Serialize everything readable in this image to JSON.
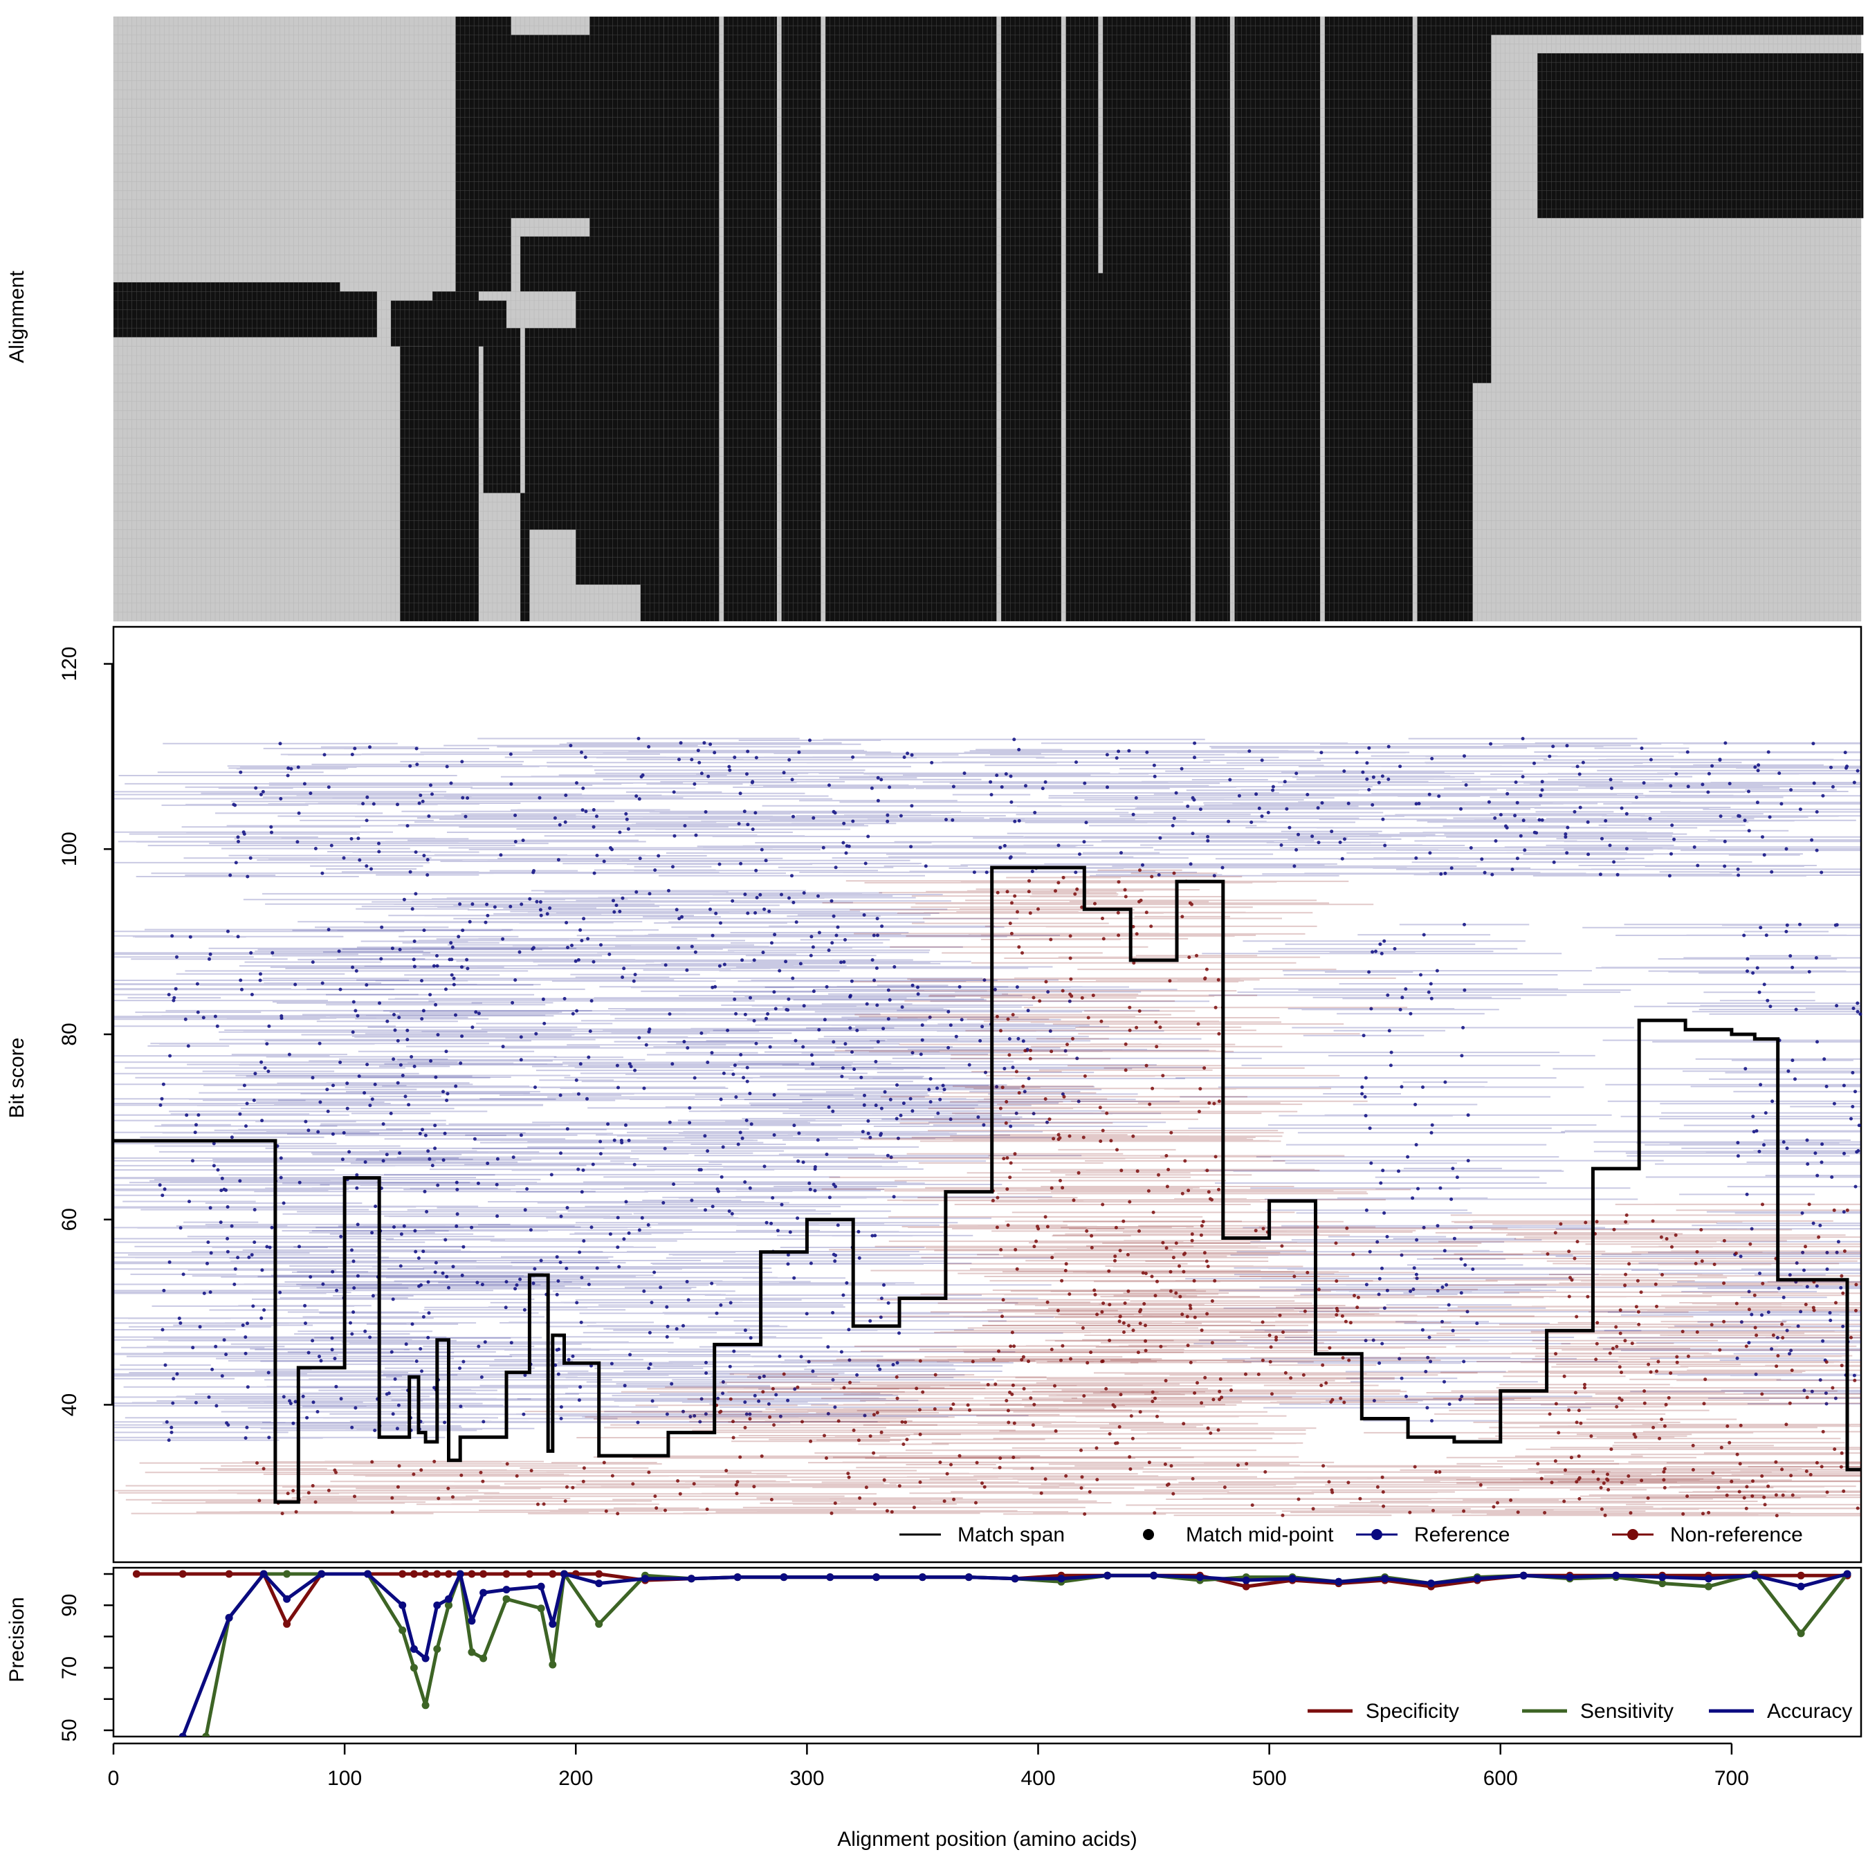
{
  "figure": {
    "shared_xlabel": "Alignment position (amino acids)"
  },
  "chart_data": [
    {
      "type": "heatmap",
      "ylabel": "Alignment",
      "xlim": [
        0,
        756
      ],
      "colors": {
        "filled": "#111111",
        "gap": "#c9c9c9"
      },
      "rows": 66,
      "columns": 378,
      "filled_blocks": [
        {
          "x": [
            228,
            238
          ],
          "rows": [
            0,
            66
          ]
        },
        {
          "x": [
            238,
            588
          ],
          "rows": [
            0,
            66
          ]
        },
        {
          "x": [
            588,
            596
          ],
          "rows": [
            0,
            40
          ]
        },
        {
          "x": [
            595,
            757
          ],
          "rows": [
            0,
            2
          ]
        },
        {
          "x": [
            616,
            757
          ],
          "rows": [
            4,
            22
          ]
        },
        {
          "x": [
            148,
            172
          ],
          "rows": [
            0,
            30
          ]
        },
        {
          "x": [
            170,
            206
          ],
          "rows": [
            2,
            22
          ]
        },
        {
          "x": [
            206,
            228
          ],
          "rows": [
            0,
            62
          ]
        },
        {
          "x": [
            176,
            212
          ],
          "rows": [
            24,
            30
          ]
        },
        {
          "x": [
            0,
            98
          ],
          "rows": [
            29,
            35
          ]
        },
        {
          "x": [
            97,
            114
          ],
          "rows": [
            30,
            35
          ]
        },
        {
          "x": [
            120,
            170
          ],
          "rows": [
            31,
            36
          ]
        },
        {
          "x": [
            124,
            148
          ],
          "rows": [
            36,
            66
          ]
        },
        {
          "x": [
            138,
            158
          ],
          "rows": [
            30,
            66
          ]
        },
        {
          "x": [
            160,
            176
          ],
          "rows": [
            34,
            52
          ]
        },
        {
          "x": [
            178,
            200
          ],
          "rows": [
            34,
            56
          ]
        },
        {
          "x": [
            200,
            226
          ],
          "rows": [
            30,
            62
          ]
        },
        {
          "x": [
            176,
            180
          ],
          "rows": [
            52,
            66
          ]
        }
      ],
      "gap_columns": [
        {
          "x": [
            262,
            264
          ],
          "rows": [
            0,
            66
          ]
        },
        {
          "x": [
            287,
            289
          ],
          "rows": [
            0,
            66
          ]
        },
        {
          "x": [
            306,
            308
          ],
          "rows": [
            0,
            66
          ]
        },
        {
          "x": [
            382,
            384
          ],
          "rows": [
            0,
            66
          ]
        },
        {
          "x": [
            410,
            412
          ],
          "rows": [
            0,
            66
          ]
        },
        {
          "x": [
            466,
            468
          ],
          "rows": [
            0,
            66
          ]
        },
        {
          "x": [
            483,
            485
          ],
          "rows": [
            0,
            66
          ]
        },
        {
          "x": [
            562,
            564
          ],
          "rows": [
            0,
            66
          ]
        },
        {
          "x": [
            426,
            428
          ],
          "rows": [
            0,
            28
          ]
        },
        {
          "x": [
            522,
            524
          ],
          "rows": [
            0,
            66
          ]
        }
      ]
    },
    {
      "type": "line",
      "ylabel": "Bit score",
      "xlim": [
        0,
        756
      ],
      "ylim": [
        23,
        124
      ],
      "yticks": [
        40,
        60,
        80,
        100,
        120
      ],
      "legend_position": "bottom-right",
      "legend": [
        {
          "label": "Match span",
          "marker": "line",
          "color": "#000000"
        },
        {
          "label": "Match mid-point",
          "marker": "dot",
          "color": "#000000"
        },
        {
          "label": "Reference",
          "marker": "line-dot",
          "color": "#0a0a80"
        },
        {
          "label": "Non-reference",
          "marker": "line-dot",
          "color": "#7a0a0a"
        }
      ],
      "series": [
        {
          "name": "Match span",
          "color": "#000000",
          "step": true,
          "x": [
            0,
            70,
            80,
            100,
            115,
            120,
            128,
            132,
            135,
            140,
            145,
            150,
            155,
            160,
            170,
            180,
            188,
            190,
            195,
            200,
            210,
            220,
            240,
            250,
            260,
            280,
            300,
            320,
            330,
            340,
            360,
            380,
            400,
            420,
            440,
            460,
            480,
            500,
            520,
            540,
            560,
            580,
            600,
            620,
            640,
            660,
            680,
            700,
            710,
            720,
            740,
            750,
            756
          ],
          "values": [
            68.5,
            29.5,
            44,
            64.5,
            36.5,
            36.5,
            43,
            37,
            36,
            47,
            34,
            36.5,
            36.5,
            36.5,
            43.5,
            54,
            35,
            47.5,
            44.5,
            44.5,
            34.5,
            34.5,
            37,
            37,
            46.5,
            56.5,
            60,
            48.5,
            48.5,
            51.5,
            63,
            98,
            98,
            93.5,
            88,
            96.5,
            58,
            62,
            45.5,
            38.5,
            36.5,
            36,
            41.5,
            48,
            65.5,
            81.5,
            80.5,
            80,
            79.5,
            53.5,
            53.5,
            33,
            33
          ]
        },
        {
          "name": "Reference",
          "color": "#0a0a80",
          "bands": [
            {
              "x": [
                50,
                756
              ],
              "y": [
                97,
                112
              ]
            },
            {
              "x": [
                120,
                340
              ],
              "y": [
                38,
                96
              ]
            },
            {
              "x": [
                300,
                420
              ],
              "y": [
                70,
                86
              ]
            },
            {
              "x": [
                540,
                590
              ],
              "y": [
                38,
                92
              ]
            },
            {
              "x": [
                700,
                756
              ],
              "y": [
                40,
                92
              ]
            },
            {
              "x": [
                20,
                140
              ],
              "y": [
                36,
                92
              ]
            }
          ]
        },
        {
          "name": "Non-reference",
          "color": "#7a0a0a",
          "bands": [
            {
              "x": [
                60,
                756
              ],
              "y": [
                28,
                34
              ]
            },
            {
              "x": [
                260,
                340
              ],
              "y": [
                34,
                44
              ]
            },
            {
              "x": [
                340,
                400
              ],
              "y": [
                34,
                46
              ]
            },
            {
              "x": [
                380,
                480
              ],
              "y": [
                34,
                98
              ]
            },
            {
              "x": [
                420,
                540
              ],
              "y": [
                40,
                60
              ]
            },
            {
              "x": [
                620,
                756
              ],
              "y": [
                30,
                62
              ]
            }
          ]
        }
      ]
    },
    {
      "type": "line",
      "ylabel": "Precision",
      "xlim": [
        0,
        756
      ],
      "ylim": [
        48,
        102
      ],
      "yticks": [
        50,
        70,
        90
      ],
      "legend_position": "bottom-right",
      "series": [
        {
          "name": "Specificity",
          "color": "#7b0d0d",
          "x": [
            10,
            30,
            50,
            65,
            75,
            90,
            110,
            125,
            130,
            135,
            140,
            145,
            150,
            155,
            160,
            170,
            180,
            190,
            195,
            200,
            210,
            230,
            250,
            270,
            290,
            310,
            330,
            350,
            370,
            390,
            410,
            430,
            450,
            470,
            490,
            510,
            530,
            550,
            570,
            590,
            610,
            630,
            650,
            670,
            690,
            710,
            730,
            750
          ],
          "values": [
            100,
            100,
            100,
            100,
            84,
            100,
            100,
            100,
            100,
            100,
            100,
            100,
            100,
            100,
            100,
            100,
            100,
            100,
            100,
            100,
            100,
            98,
            98.5,
            99,
            99,
            99,
            99,
            99,
            99,
            98.5,
            99.5,
            99.5,
            99.5,
            99.5,
            96,
            98,
            97,
            98,
            96,
            98,
            99.5,
            99.5,
            99.5,
            99.5,
            99.5,
            99.5,
            99.5,
            99.5
          ]
        },
        {
          "name": "Sensitivity",
          "color": "#3d6425",
          "x": [
            40,
            50,
            65,
            75,
            90,
            110,
            125,
            130,
            135,
            140,
            145,
            150,
            155,
            160,
            170,
            185,
            190,
            195,
            210,
            230,
            250,
            270,
            290,
            310,
            330,
            350,
            370,
            390,
            410,
            430,
            450,
            470,
            490,
            510,
            530,
            550,
            570,
            590,
            610,
            630,
            650,
            670,
            690,
            710,
            730,
            750
          ],
          "values": [
            48,
            86,
            100,
            100,
            100,
            100,
            82,
            70,
            58,
            76,
            90,
            100,
            75,
            73,
            92,
            89,
            71,
            100,
            84,
            99.5,
            98.5,
            99,
            99,
            99,
            99,
            99,
            99,
            98.5,
            97.5,
            99.5,
            99.5,
            98,
            99,
            99,
            97.5,
            99,
            97,
            99,
            99.5,
            98.5,
            99,
            97,
            96,
            100,
            81,
            100
          ]
        },
        {
          "name": "Accuracy",
          "color": "#0a0a80",
          "x": [
            30,
            50,
            65,
            75,
            90,
            110,
            125,
            130,
            135,
            140,
            145,
            150,
            155,
            160,
            170,
            185,
            190,
            195,
            210,
            230,
            250,
            270,
            290,
            310,
            330,
            350,
            370,
            390,
            410,
            430,
            450,
            470,
            490,
            510,
            530,
            550,
            570,
            590,
            610,
            630,
            650,
            670,
            690,
            710,
            730,
            750
          ],
          "values": [
            48,
            86,
            100,
            92,
            100,
            100,
            90,
            76,
            73,
            90,
            92,
            100,
            85,
            94,
            95,
            96,
            84,
            100,
            97,
            98.5,
            98.5,
            99,
            99,
            99,
            99,
            99,
            99,
            98.5,
            98.5,
            99.5,
            99.5,
            99,
            98,
            98.5,
            97.5,
            98.5,
            97,
            98.5,
            99.5,
            99,
            99.5,
            99,
            98.5,
            99.5,
            96,
            100
          ]
        }
      ],
      "xticks": [
        0,
        100,
        200,
        300,
        400,
        500,
        600,
        700
      ]
    }
  ]
}
